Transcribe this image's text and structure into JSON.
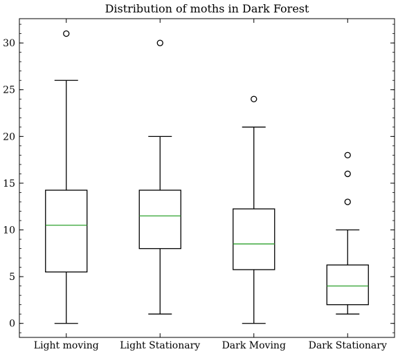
{
  "chart_data": {
    "type": "boxplot",
    "title": "Distribution of moths in Dark Forest",
    "xlabel": "",
    "ylabel": "",
    "ylim": [
      -1.5,
      32.6
    ],
    "yticks": [
      0,
      5,
      10,
      15,
      20,
      25,
      30
    ],
    "ytick_labels": [
      "0",
      "5",
      "10",
      "15",
      "20",
      "25",
      "30"
    ],
    "yminor_step": 1,
    "grid": false,
    "categories": [
      "Light moving",
      "Light Stationary",
      "Dark Moving",
      "Dark Stationary"
    ],
    "boxes": [
      {
        "category": "Light moving",
        "whisker_low": 0,
        "q1": 5.5,
        "median": 10.5,
        "q3": 14.25,
        "whisker_high": 26,
        "outliers": [
          31
        ]
      },
      {
        "category": "Light Stationary",
        "whisker_low": 1,
        "q1": 8,
        "median": 11.5,
        "q3": 14.25,
        "whisker_high": 20,
        "outliers": [
          30
        ]
      },
      {
        "category": "Dark Moving",
        "whisker_low": 0,
        "q1": 5.75,
        "median": 8.5,
        "q3": 12.25,
        "whisker_high": 21,
        "outliers": [
          24
        ]
      },
      {
        "category": "Dark Stationary",
        "whisker_low": 1,
        "q1": 2,
        "median": 4,
        "q3": 6.25,
        "whisker_high": 10,
        "outliers": [
          13,
          16,
          18
        ]
      }
    ],
    "colors": {
      "box": "#000000",
      "median": "#2ca02c",
      "outlier": "#000000"
    }
  }
}
